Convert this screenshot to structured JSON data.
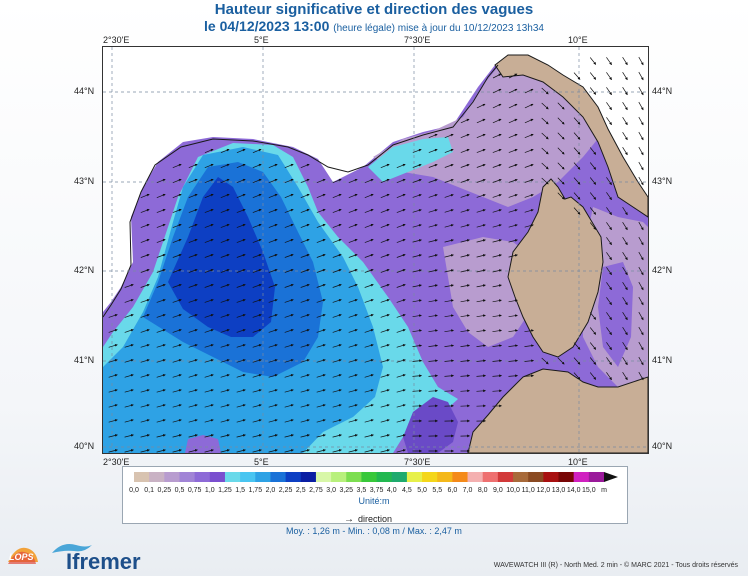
{
  "header": {
    "title": "Hauteur significative et direction des vagues",
    "date_line": "le 04/12/2023 13:00",
    "update_note": "(heure légale) mise à jour du 10/12/2023 13h34"
  },
  "map": {
    "lon_labels": [
      "2°30'E",
      "5°E",
      "7°30'E",
      "10°E"
    ],
    "lat_labels": [
      "44°N",
      "43°N",
      "42°N",
      "41°N",
      "40°N"
    ],
    "lon_range": [
      2.3,
      10.9
    ],
    "lat_range": [
      40.05,
      44.45
    ],
    "land_color": "#c8ae96",
    "coast_color": "#1a1a1a"
  },
  "legend": {
    "scale_labels": [
      "0,0",
      "0,1",
      "0,25",
      "0,5",
      "0,75",
      "1,0",
      "1,25",
      "1,5",
      "1,75",
      "2,0",
      "2,25",
      "2,5",
      "2,75",
      "3,0",
      "3,25",
      "3,5",
      "3,75",
      "4,0",
      "4,5",
      "5,0",
      "5,5",
      "6,0",
      "7,0",
      "8,0",
      "9,0",
      "10,0",
      "11,0",
      "12,0",
      "13,0",
      "14,0",
      "15,0",
      "m"
    ],
    "colors": [
      "#d8c3b0",
      "#c9b2c4",
      "#b89ccf",
      "#a184d6",
      "#8d6ad7",
      "#7a4fcf",
      "#69d9ea",
      "#49c5f1",
      "#2ea2e5",
      "#1a72d7",
      "#0d3fc3",
      "#0a1ea3",
      "#d8f7a8",
      "#b8f07c",
      "#7cde50",
      "#38c83a",
      "#22b850",
      "#1faa6e",
      "#e7f04a",
      "#f4d61a",
      "#f4b81a",
      "#f48a1a",
      "#f4b0b0",
      "#ee7070",
      "#d23a3a",
      "#a86a3a",
      "#8a4a22",
      "#a81010",
      "#780606",
      "#d020c0",
      "#9a1a9a"
    ],
    "unit": "Unité:m",
    "direction_label": "direction",
    "stats": "Moy. : 1,26 m  -  Min. : 0,08 m / Max. : 2,47 m"
  },
  "footer": {
    "logo_lops": "LOPS",
    "logo_ifremer": "Ifremer",
    "credit": "WAVEWATCH III (R) - North Med. 2 min - © MARC 2021 - Tous droits réservés"
  }
}
